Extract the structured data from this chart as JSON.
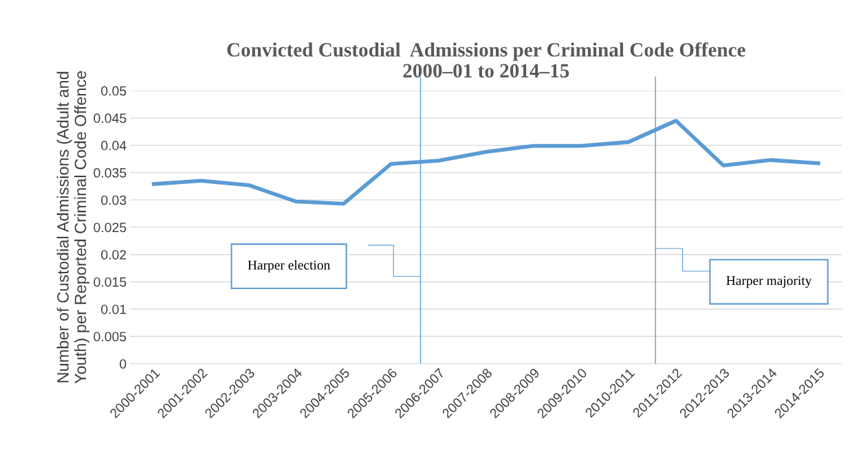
{
  "chart_data": {
    "type": "line",
    "title": "Convicted Custodial  Admissions per Criminal Code Offence\n2000–01 to 2014–15",
    "ylabel": "Number of Custodial Admissions (Adult and\nYouth) per Reported Criminal Code Offence",
    "categories": [
      "2000-2001",
      "2001-2002",
      "2002-2003",
      "2003-2004",
      "2004-2005",
      "2005-2006",
      "2006-2007",
      "2007-2008",
      "2008-2009",
      "2009-2010",
      "2010-2011",
      "2011-2012",
      "2012-2013",
      "2013-2014",
      "2014-2015"
    ],
    "series": [
      {
        "color": "#5b9bd5",
        "values": [
          0.0329,
          0.0335,
          0.0327,
          0.0297,
          0.0293,
          0.0366,
          0.0372,
          0.0388,
          0.0399,
          0.0399,
          0.0406,
          0.0445,
          0.0363,
          0.0373,
          0.0367
        ]
      }
    ],
    "ylim": [
      0,
      0.05
    ],
    "yticks": [
      0,
      0.005,
      0.01,
      0.015,
      0.02,
      0.025,
      0.03,
      0.035,
      0.04,
      0.045,
      0.05
    ],
    "grid": "y",
    "marker": "none",
    "line_style": "solid",
    "annotations": [
      "Harper election",
      "Harper majority"
    ]
  }
}
